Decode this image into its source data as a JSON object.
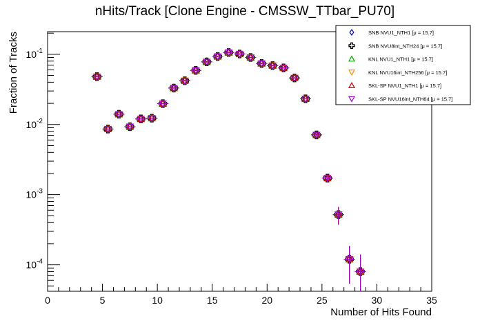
{
  "chart_data": {
    "type": "scatter",
    "title": "nHits/Track [Clone Engine - CMSSW_TTbar_PU70]",
    "xlabel": "Number of Hits Found",
    "ylabel": "Fraction of Tracks",
    "xlim": [
      0,
      35
    ],
    "ylim": [
      4.2e-05,
      0.21
    ],
    "yscale": "log",
    "x_ticks": [
      "0",
      "5",
      "10",
      "15",
      "20",
      "25",
      "30",
      "35"
    ],
    "y_ticks": [
      {
        "base": "10",
        "exp": "-4",
        "value": 0.0001
      },
      {
        "base": "10",
        "exp": "-3",
        "value": 0.001
      },
      {
        "base": "10",
        "exp": "-2",
        "value": 0.01
      },
      {
        "base": "10",
        "exp": "-1",
        "value": 0.1
      }
    ],
    "grid": false,
    "legend_position": "top-right",
    "x": [
      4.5,
      5.5,
      6.5,
      7.5,
      8.5,
      9.5,
      10.5,
      11.5,
      12.5,
      13.5,
      14.5,
      15.5,
      16.5,
      17.5,
      18.5,
      19.5,
      20.5,
      21.5,
      22.5,
      23.5,
      24.5,
      25.5,
      26.5,
      27.5,
      28.5
    ],
    "x_error": 0.5,
    "y_error_rel": [
      0.02,
      0.02,
      0.02,
      0.02,
      0.02,
      0.02,
      0.02,
      0.02,
      0.02,
      0.02,
      0.02,
      0.02,
      0.02,
      0.02,
      0.02,
      0.02,
      0.02,
      0.02,
      0.02,
      0.02,
      0.05,
      0.1,
      0.28,
      0.55,
      0.75
    ],
    "series": [
      {
        "name": "SNB NVU1_NTH1 [μ = 15.7]",
        "marker": "diamond",
        "color": "#0000cc",
        "values": [
          0.048,
          0.0086,
          0.014,
          0.0093,
          0.012,
          0.0123,
          0.0198,
          0.033,
          0.042,
          0.059,
          0.078,
          0.093,
          0.106,
          0.101,
          0.09,
          0.074,
          0.069,
          0.064,
          0.046,
          0.0232,
          0.0071,
          0.00172,
          0.00052,
          0.00012,
          8e-05
        ]
      },
      {
        "name": "SNB NVU8int_NTH24 [μ = 15.7]",
        "marker": "cross",
        "color": "#000000",
        "values": [
          0.048,
          0.0086,
          0.014,
          0.0093,
          0.012,
          0.0123,
          0.0198,
          0.033,
          0.042,
          0.059,
          0.078,
          0.093,
          0.106,
          0.101,
          0.09,
          0.074,
          0.069,
          0.064,
          0.046,
          0.0232,
          0.0071,
          0.00172,
          0.00052,
          0.00012,
          8e-05
        ]
      },
      {
        "name": "KNL NVU1_NTH1 [μ = 15.7]",
        "marker": "triangle-up",
        "color": "#00aa00",
        "values": [
          0.048,
          0.0086,
          0.014,
          0.0093,
          0.012,
          0.0123,
          0.0198,
          0.033,
          0.042,
          0.059,
          0.078,
          0.093,
          0.106,
          0.101,
          0.09,
          0.074,
          0.069,
          0.064,
          0.046,
          0.0232,
          0.0071,
          0.00172,
          0.00052,
          0.00012,
          8e-05
        ]
      },
      {
        "name": "KNL NVU16int_NTH256 [μ = 15.7]",
        "marker": "triangle-down",
        "color": "#ff8800",
        "values": [
          0.048,
          0.0086,
          0.014,
          0.0093,
          0.012,
          0.0123,
          0.0198,
          0.033,
          0.042,
          0.059,
          0.078,
          0.093,
          0.106,
          0.101,
          0.09,
          0.074,
          0.069,
          0.064,
          0.046,
          0.0232,
          0.0071,
          0.00172,
          0.00052,
          0.00012,
          8e-05
        ]
      },
      {
        "name": "SKL-SP NVU1_NTH1 [μ = 15.7]",
        "marker": "triangle-up",
        "color": "#cc0000",
        "values": [
          0.048,
          0.0086,
          0.014,
          0.0093,
          0.012,
          0.0123,
          0.0198,
          0.033,
          0.042,
          0.059,
          0.078,
          0.093,
          0.106,
          0.101,
          0.09,
          0.074,
          0.069,
          0.064,
          0.046,
          0.0232,
          0.0071,
          0.00172,
          0.00052,
          0.00012,
          8e-05
        ]
      },
      {
        "name": "SKL-SP NVU16int_NTH64 [μ = 15.7]",
        "marker": "triangle-down",
        "color": "#9900cc",
        "values": [
          0.048,
          0.0086,
          0.014,
          0.0093,
          0.012,
          0.0123,
          0.0198,
          0.033,
          0.042,
          0.059,
          0.078,
          0.093,
          0.106,
          0.101,
          0.09,
          0.074,
          0.069,
          0.064,
          0.046,
          0.0232,
          0.0071,
          0.00172,
          0.00052,
          0.00012,
          8e-05
        ]
      }
    ]
  }
}
